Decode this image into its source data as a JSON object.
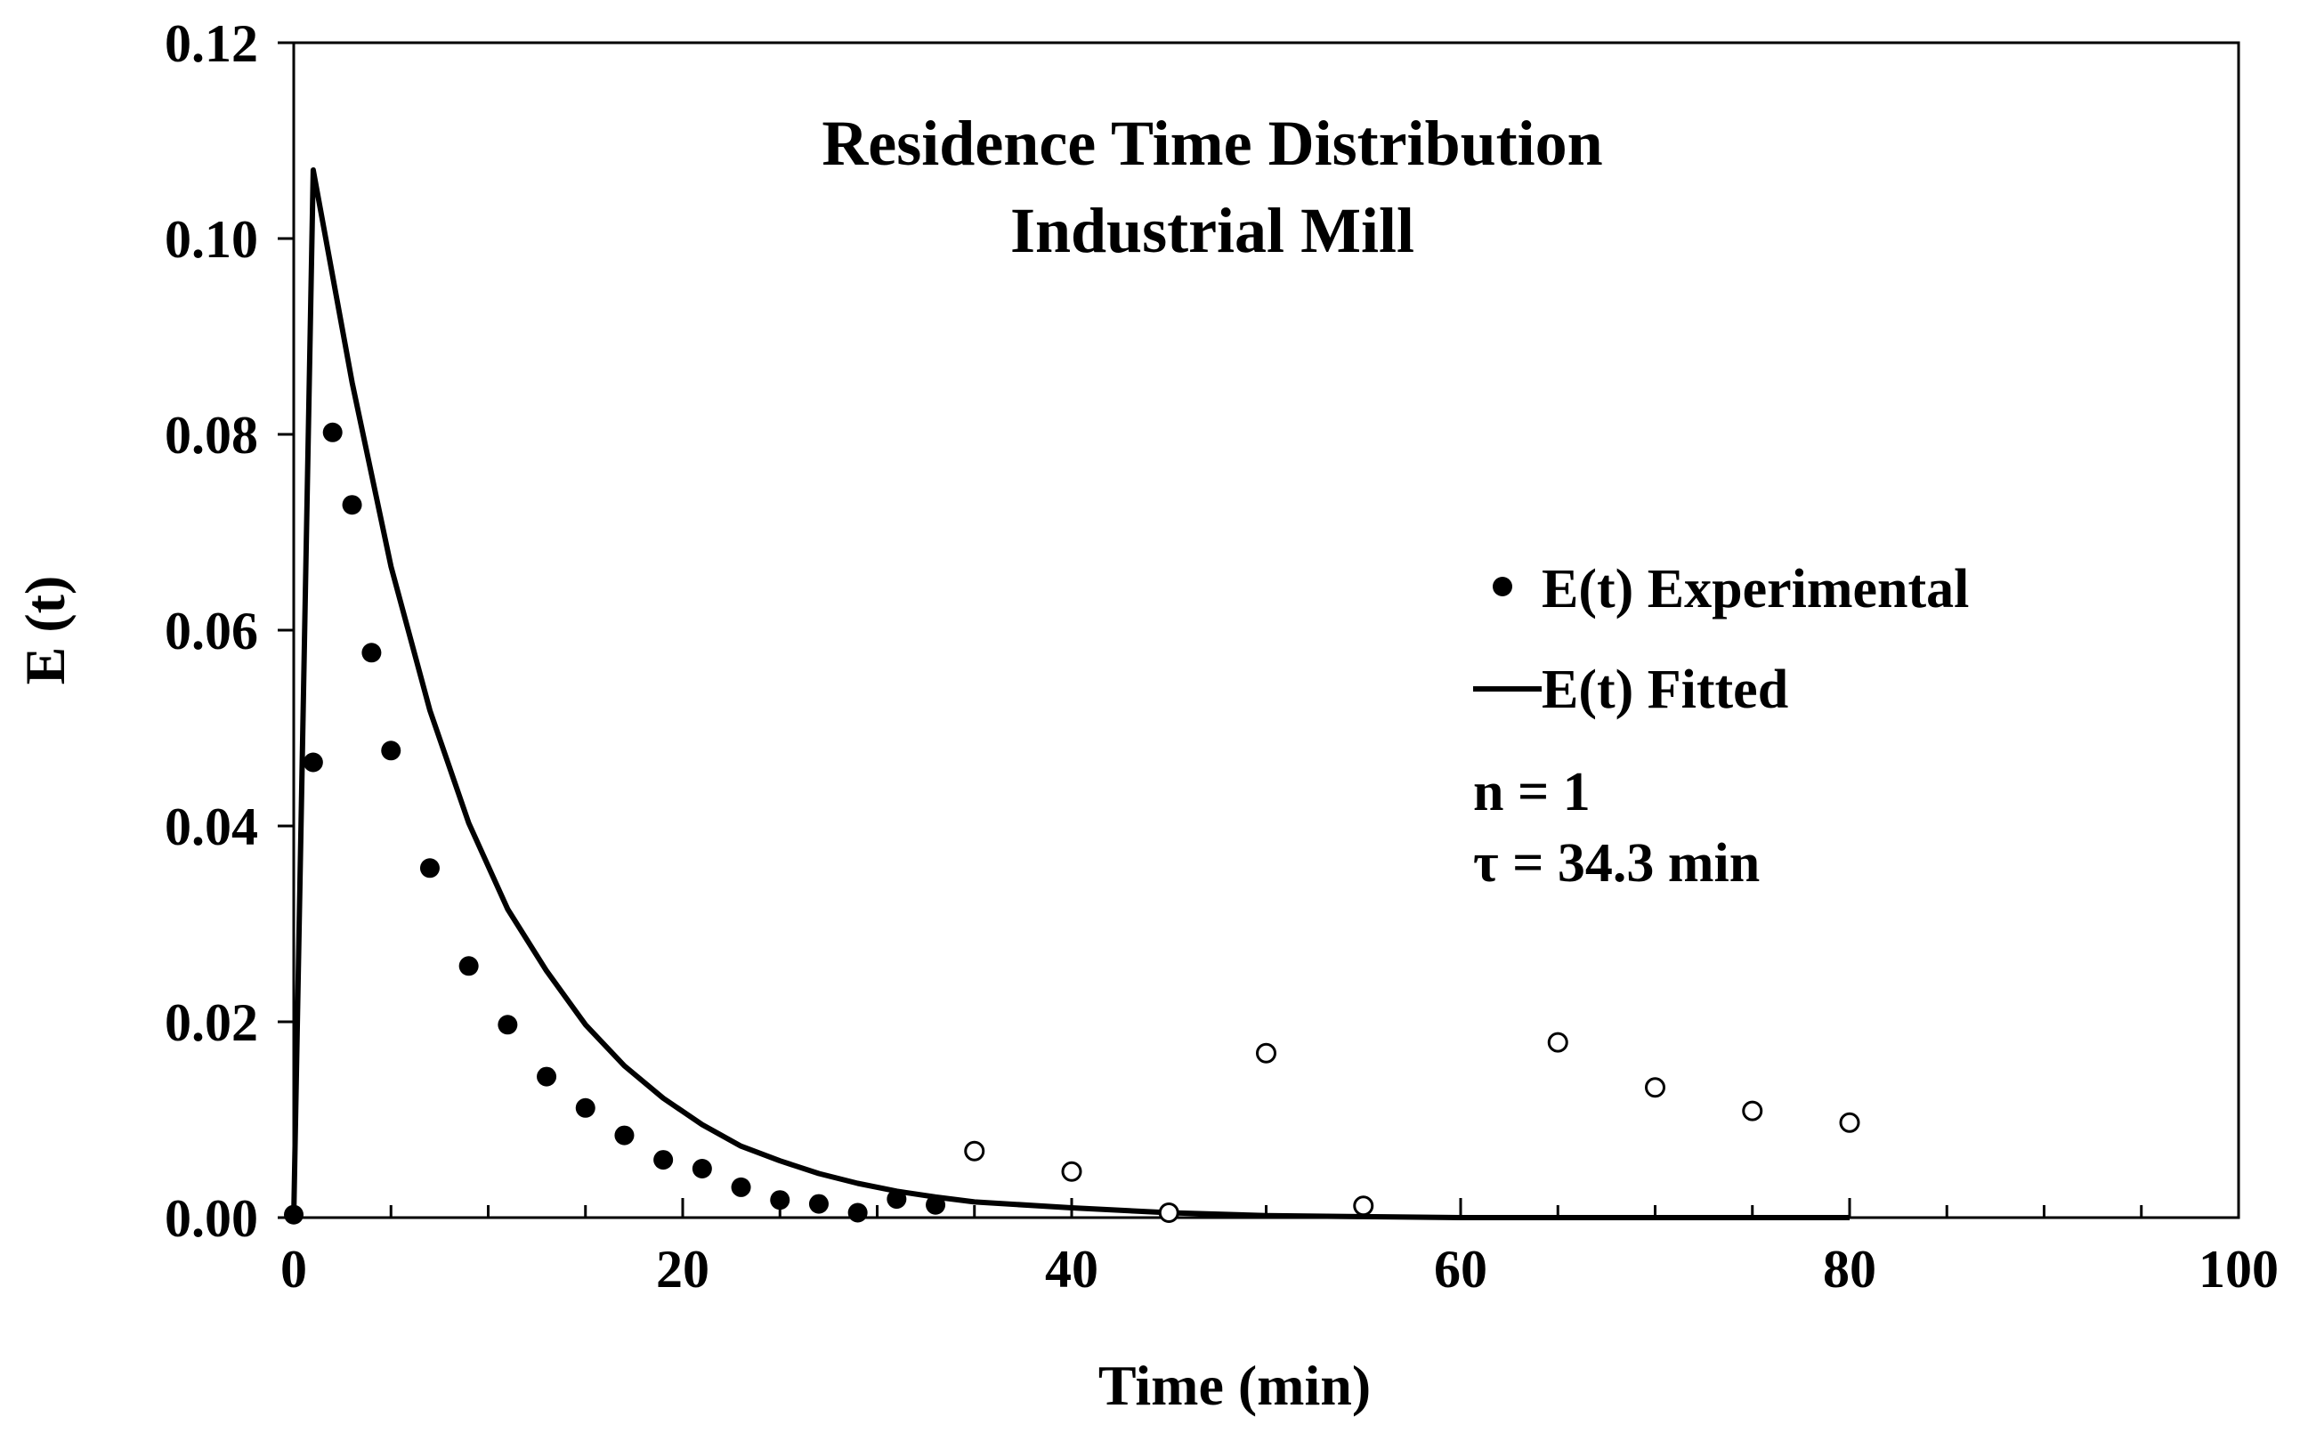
{
  "chart_data": {
    "type": "scatter",
    "title": "Residence Time Distribution",
    "subtitle": "Industrial Mill",
    "xlabel": "Time (min)",
    "ylabel": "E (t)",
    "xlim": [
      0,
      100
    ],
    "ylim": [
      0,
      0.12
    ],
    "x_ticks": [
      "0",
      "20",
      "40",
      "60",
      "80",
      "100"
    ],
    "y_ticks": [
      "0.00",
      "0.02",
      "0.04",
      "0.06",
      "0.08",
      "0.10",
      "0.12"
    ],
    "grid": false,
    "legend_position": "right",
    "series": [
      {
        "name": "E(t) Experimental",
        "kind": "filled-points",
        "x": [
          0,
          1,
          2,
          3,
          4,
          5,
          7,
          9,
          11,
          13,
          15,
          17,
          19,
          21,
          23,
          25,
          27,
          29,
          31,
          33
        ],
        "y": [
          0.0003,
          0.0465,
          0.0802,
          0.0728,
          0.0577,
          0.0477,
          0.0357,
          0.0257,
          0.0197,
          0.0144,
          0.0112,
          0.0084,
          0.0059,
          0.005,
          0.0031,
          0.0018,
          0.0014,
          0.0005,
          0.0019,
          0.0013
        ]
      },
      {
        "kind": "open-points",
        "x": [
          35,
          40,
          45,
          50,
          55,
          65,
          70,
          75,
          80
        ],
        "y": [
          0.0068,
          0.0047,
          0.0005,
          0.0168,
          0.0012,
          0.0179,
          0.0133,
          0.0109,
          0.0097
        ]
      },
      {
        "name": "E(t) Fitted",
        "kind": "line",
        "x": [
          0,
          1,
          3,
          5,
          7,
          9,
          11,
          13,
          15,
          17,
          19,
          21,
          23,
          25,
          27,
          29,
          31,
          33,
          35,
          40,
          45,
          50,
          55,
          60,
          65,
          70,
          75,
          80
        ],
        "y": [
          0.0,
          0.107,
          0.0853,
          0.0665,
          0.0518,
          0.0403,
          0.0315,
          0.0252,
          0.0197,
          0.0155,
          0.0122,
          0.0095,
          0.0073,
          0.0058,
          0.0045,
          0.0035,
          0.0027,
          0.0021,
          0.0016,
          0.001,
          0.0005,
          0.0002,
          0.0001,
          0.0,
          0.0,
          0.0,
          0.0,
          0.0
        ]
      }
    ],
    "annotations": [
      "n = 1",
      "τ = 34.3 min"
    ]
  }
}
